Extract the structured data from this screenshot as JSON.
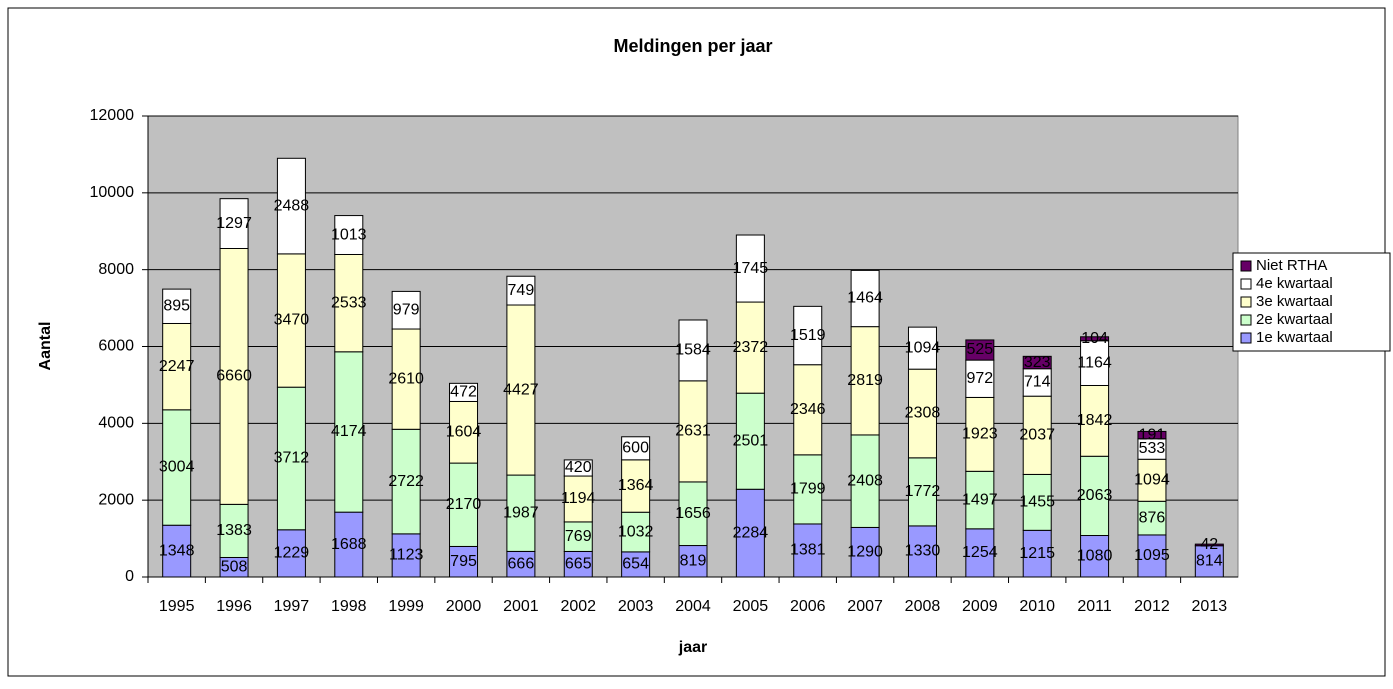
{
  "chart_data": {
    "type": "stacked_bar",
    "title": "Meldingen per jaar",
    "x_label": "jaar",
    "y_label": "Aantal",
    "categories": [
      "1995",
      "1996",
      "1997",
      "1998",
      "1999",
      "2000",
      "2001",
      "2002",
      "2003",
      "2004",
      "2005",
      "2006",
      "2007",
      "2008",
      "2009",
      "2010",
      "2011",
      "2012",
      "2013"
    ],
    "series": [
      {
        "name": "1e kwartaal",
        "color": "#9999ff",
        "values": [
          1348,
          508,
          1229,
          1688,
          1123,
          795,
          666,
          665,
          654,
          819,
          2284,
          1381,
          1290,
          1330,
          1254,
          1215,
          1080,
          1095,
          814
        ]
      },
      {
        "name": "2e kwartaal",
        "color": "#ccffcc",
        "values": [
          3004,
          1383,
          3712,
          4174,
          2722,
          2170,
          1987,
          769,
          1032,
          1656,
          2501,
          1799,
          2408,
          1772,
          1497,
          1455,
          2063,
          876,
          null
        ]
      },
      {
        "name": "3e kwartaal",
        "color": "#ffffcc",
        "values": [
          2247,
          6660,
          3470,
          2533,
          2610,
          1604,
          4427,
          1194,
          1364,
          2631,
          2372,
          2346,
          2819,
          2308,
          1923,
          2037,
          1842,
          1094,
          null
        ]
      },
      {
        "name": "4e kwartaal",
        "color": "#ffffff",
        "values": [
          895,
          1297,
          2488,
          1013,
          979,
          472,
          749,
          420,
          600,
          1584,
          1745,
          1519,
          1464,
          1094,
          972,
          714,
          1164,
          533,
          null
        ]
      },
      {
        "name": "Niet RTHA",
        "color": "#660066",
        "values": [
          null,
          null,
          null,
          null,
          null,
          null,
          null,
          null,
          null,
          null,
          null,
          null,
          null,
          null,
          525,
          323,
          104,
          191,
          42
        ]
      }
    ],
    "ylim": [
      0,
      12000
    ],
    "yticks": [
      0,
      2000,
      4000,
      6000,
      8000,
      10000,
      12000
    ],
    "grid": true,
    "plot_background": "#c0c0c0",
    "legend": "right"
  }
}
